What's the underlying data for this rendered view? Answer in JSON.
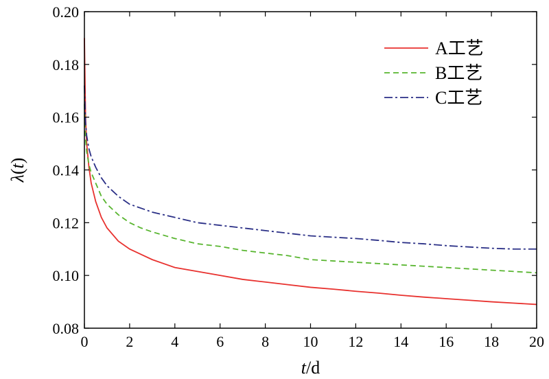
{
  "chart_data": {
    "type": "line",
    "xlabel": "t/d",
    "ylabel": "λ(t)",
    "xlim": [
      0,
      20
    ],
    "ylim": [
      0.08,
      0.2
    ],
    "x_ticks": [
      0,
      2,
      4,
      6,
      8,
      10,
      12,
      14,
      16,
      18,
      20
    ],
    "y_ticks": [
      0.08,
      0.1,
      0.12,
      0.14,
      0.16,
      0.18,
      0.2
    ],
    "x_tick_labels": [
      "0",
      "2",
      "4",
      "6",
      "8",
      "10",
      "12",
      "14",
      "16",
      "18",
      "20"
    ],
    "y_tick_labels": [
      "0.08",
      "0.10",
      "0.12",
      "0.14",
      "0.16",
      "0.18",
      "0.20"
    ],
    "grid": false,
    "legend_position": "top-right",
    "x": [
      0,
      0.05,
      0.1,
      0.2,
      0.3,
      0.5,
      0.75,
      1,
      1.5,
      2,
      2.5,
      3,
      4,
      5,
      6,
      7,
      8,
      9,
      10,
      11,
      12,
      13,
      14,
      15,
      16,
      17,
      18,
      19,
      20
    ],
    "series": [
      {
        "name": "A工艺",
        "color": "#e8312e",
        "dash": "solid",
        "values": [
          0.19,
          0.16,
          0.15,
          0.141,
          0.135,
          0.128,
          0.122,
          0.118,
          0.113,
          0.11,
          0.108,
          0.106,
          0.103,
          0.1015,
          0.1,
          0.0985,
          0.0975,
          0.0965,
          0.0955,
          0.0948,
          0.094,
          0.0933,
          0.0925,
          0.0918,
          0.0912,
          0.0906,
          0.09,
          0.0895,
          0.089
        ]
      },
      {
        "name": "B工艺",
        "color": "#58b52f",
        "dash": "dashed",
        "values": [
          0.165,
          0.152,
          0.147,
          0.142,
          0.139,
          0.135,
          0.13,
          0.127,
          0.123,
          0.12,
          0.118,
          0.1165,
          0.114,
          0.112,
          0.111,
          0.1095,
          0.1085,
          0.1075,
          0.106,
          0.1055,
          0.105,
          0.1045,
          0.104,
          0.1035,
          0.103,
          0.1025,
          0.102,
          0.1015,
          0.101
        ]
      },
      {
        "name": "C工艺",
        "color": "#2a2f86",
        "dash": "dashdot",
        "values": [
          0.172,
          0.158,
          0.153,
          0.148,
          0.145,
          0.141,
          0.137,
          0.134,
          0.13,
          0.127,
          0.1255,
          0.124,
          0.122,
          0.12,
          0.119,
          0.118,
          0.117,
          0.116,
          0.115,
          0.1145,
          0.114,
          0.1133,
          0.1125,
          0.112,
          0.1113,
          0.1108,
          0.1103,
          0.11,
          0.11
        ]
      }
    ]
  }
}
